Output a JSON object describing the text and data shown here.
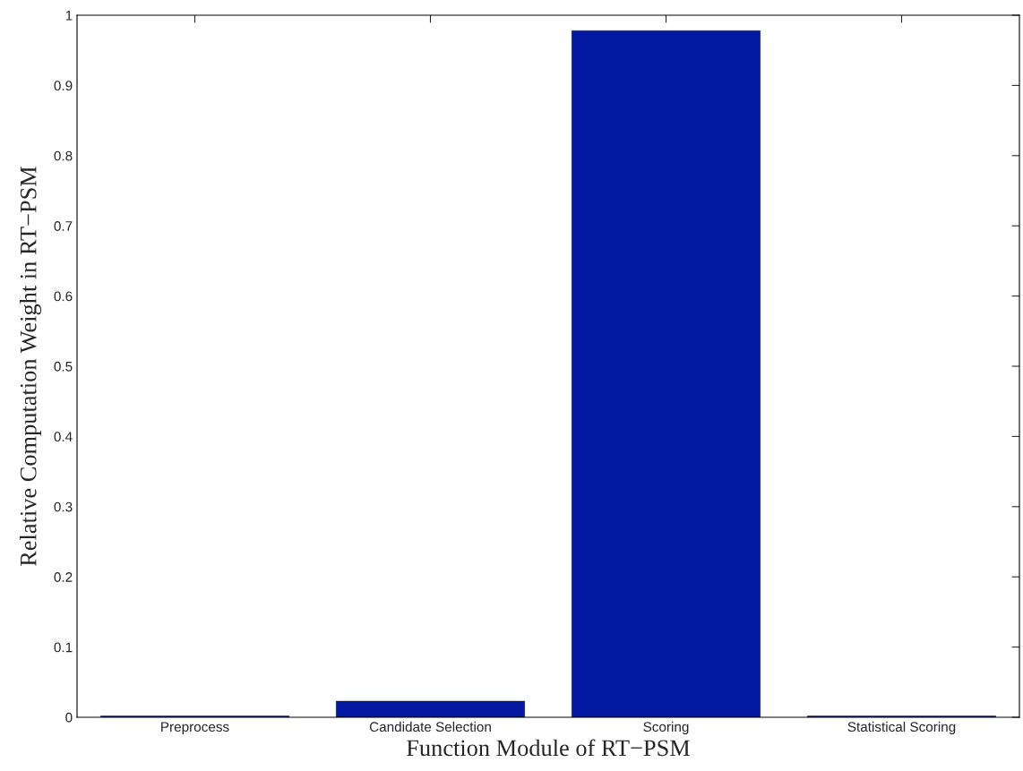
{
  "chart_data": {
    "type": "bar",
    "xlabel": "Function Module of RT−PSM",
    "ylabel": "Relative Computation Weight in RT−PSM",
    "categories": [
      "Preprocess",
      "Candidate Selection",
      "Scoring",
      "Statistical Scoring"
    ],
    "values": [
      0.002,
      0.023,
      0.978,
      0.002
    ],
    "color": "#0318a0",
    "ylim": [
      0,
      1
    ],
    "yticks": [
      0,
      0.1,
      0.2,
      0.3,
      0.4,
      0.5,
      0.6,
      0.7,
      0.8,
      0.9,
      1
    ],
    "grid": false
  }
}
